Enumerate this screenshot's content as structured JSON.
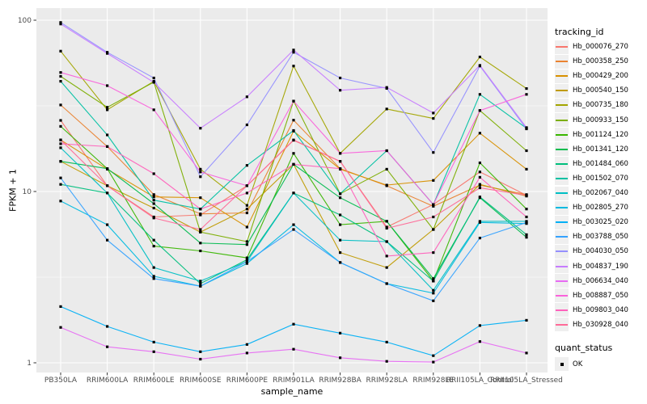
{
  "figure": {
    "panel_bg": "#EBEBEB",
    "grid_color": "#FFFFFF",
    "tick_color": "#333333",
    "tick_label_color": "#4D4D4D"
  },
  "axes": {
    "y": {
      "title": "FPKM + 1",
      "scale": "log10",
      "tick_labels": [
        "100",
        "10",
        "1"
      ],
      "tick_values": [
        100,
        10,
        1
      ],
      "minor_grid_values": [
        31.62,
        3.162
      ]
    },
    "x": {
      "title": "sample_name"
    }
  },
  "legend": {
    "tracking_title": "tracking_id",
    "quant_title": "quant_status",
    "quant_label": "OK"
  },
  "chart_data": {
    "type": "line",
    "title": "",
    "xlabel": "sample_name",
    "ylabel": "FPKM + 1",
    "yscale": "log10",
    "ylim": [
      0.88,
      117
    ],
    "grid": true,
    "legend_position": "right",
    "point_marker": "black-square",
    "categories": [
      "PB350LA",
      "RRIM600LA",
      "RRIM600LE",
      "RRIM600SE",
      "RRIM600PE",
      "RRIM901LA",
      "RRIM928BA",
      "RRIM928LA",
      "RRIM928LE",
      "RRII105LA_Control",
      "RRII105LA_Stressed"
    ],
    "series": [
      {
        "name": "Hb_000076_270",
        "color": "#F8766D",
        "values": [
          26,
          10.8,
          7.1,
          7.3,
          10.8,
          19.9,
          15.0,
          6.2,
          8.4,
          13.0,
          9.5
        ]
      },
      {
        "name": "Hb_000358_250",
        "color": "#EA8331",
        "values": [
          32,
          18.3,
          9.6,
          7.4,
          7.5,
          26.1,
          13.6,
          10.8,
          8.2,
          10.9,
          9.6
        ]
      },
      {
        "name": "Hb_000429_200",
        "color": "#D89000",
        "values": [
          20,
          13.5,
          9.3,
          9.2,
          6.2,
          22.5,
          13.5,
          10.9,
          11.6,
          21.9,
          13.5
        ]
      },
      {
        "name": "Hb_000540_150",
        "color": "#C09B00",
        "values": [
          15,
          10.8,
          8.0,
          5.8,
          7.9,
          14.4,
          4.4,
          3.6,
          6.0,
          11.0,
          9.4
        ]
      },
      {
        "name": "Hb_000735_180",
        "color": "#A3A500",
        "values": [
          66,
          30,
          44,
          13.5,
          8.3,
          54,
          16.7,
          30.3,
          26.7,
          61,
          39.9
        ]
      },
      {
        "name": "Hb_000933_150",
        "color": "#7CAE00",
        "values": [
          47,
          31,
          43.5,
          5.8,
          5.1,
          33.7,
          9.7,
          13.5,
          6.0,
          29.7,
          17.3
        ]
      },
      {
        "name": "Hb_001124_120",
        "color": "#39B600",
        "values": [
          24,
          13.6,
          4.8,
          4.5,
          4.1,
          16.7,
          6.4,
          6.7,
          3.0,
          14.7,
          7.9
        ]
      },
      {
        "name": "Hb_001341_120",
        "color": "#00BB4E",
        "values": [
          15,
          13.6,
          8.5,
          5.0,
          4.9,
          14.4,
          9.2,
          6.7,
          3.1,
          9.2,
          5.4
        ]
      },
      {
        "name": "Hb_001484_060",
        "color": "#00BF7D",
        "values": [
          11,
          9.8,
          5.2,
          2.9,
          4.0,
          9.8,
          7.3,
          5.1,
          3.0,
          9.3,
          5.6
        ]
      },
      {
        "name": "Hb_001502_070",
        "color": "#00C1A3",
        "values": [
          44,
          21.4,
          8.9,
          7.9,
          14.2,
          22.7,
          9.7,
          17.3,
          8.4,
          36.9,
          23.4
        ]
      },
      {
        "name": "Hb_002067_040",
        "color": "#00BFC4",
        "values": [
          18,
          9.8,
          3.6,
          3.0,
          3.9,
          9.8,
          5.2,
          5.1,
          2.65,
          6.7,
          6.7
        ]
      },
      {
        "name": "Hb_002805_270",
        "color": "#00BAE0",
        "values": [
          8.8,
          6.4,
          3.2,
          2.8,
          3.8,
          6.4,
          3.85,
          2.9,
          2.55,
          6.6,
          6.5
        ]
      },
      {
        "name": "Hb_003025_020",
        "color": "#00B0F6",
        "values": [
          2.13,
          1.63,
          1.32,
          1.16,
          1.28,
          1.68,
          1.49,
          1.32,
          1.1,
          1.65,
          1.77
        ]
      },
      {
        "name": "Hb_003788_050",
        "color": "#35A2FF",
        "values": [
          12,
          5.2,
          3.1,
          2.8,
          3.9,
          6.0,
          3.85,
          2.9,
          2.3,
          5.35,
          6.6
        ]
      },
      {
        "name": "Hb_004030_050",
        "color": "#9590FF",
        "values": [
          97,
          65,
          46,
          12.2,
          24.5,
          65,
          46,
          40,
          16.9,
          54,
          23.2
        ]
      },
      {
        "name": "Hb_004837_190",
        "color": "#C77CFF",
        "values": [
          95,
          64,
          43.4,
          23.4,
          35.7,
          67,
          39,
          40.5,
          28.7,
          54.5,
          23.6
        ]
      },
      {
        "name": "Hb_006634_040",
        "color": "#E76BF3",
        "values": [
          1.61,
          1.24,
          1.16,
          1.05,
          1.14,
          1.2,
          1.07,
          1.02,
          1.01,
          1.33,
          1.14
        ]
      },
      {
        "name": "Hb_008887_050",
        "color": "#FA62DB",
        "values": [
          49.5,
          41.5,
          30,
          13.0,
          10.8,
          33.7,
          16.7,
          17.3,
          8.4,
          29.7,
          36.9
        ]
      },
      {
        "name": "Hb_009803_040",
        "color": "#FF62BC",
        "values": [
          19,
          18.3,
          12.7,
          7.9,
          9.8,
          14.4,
          13.6,
          4.2,
          4.4,
          12.1,
          7.1
        ]
      },
      {
        "name": "Hb_030928_040",
        "color": "#FF6A98",
        "values": [
          20,
          10.8,
          7.0,
          6.0,
          10.8,
          20,
          15,
          6.1,
          7.1,
          10.5,
          9.5
        ]
      }
    ]
  }
}
